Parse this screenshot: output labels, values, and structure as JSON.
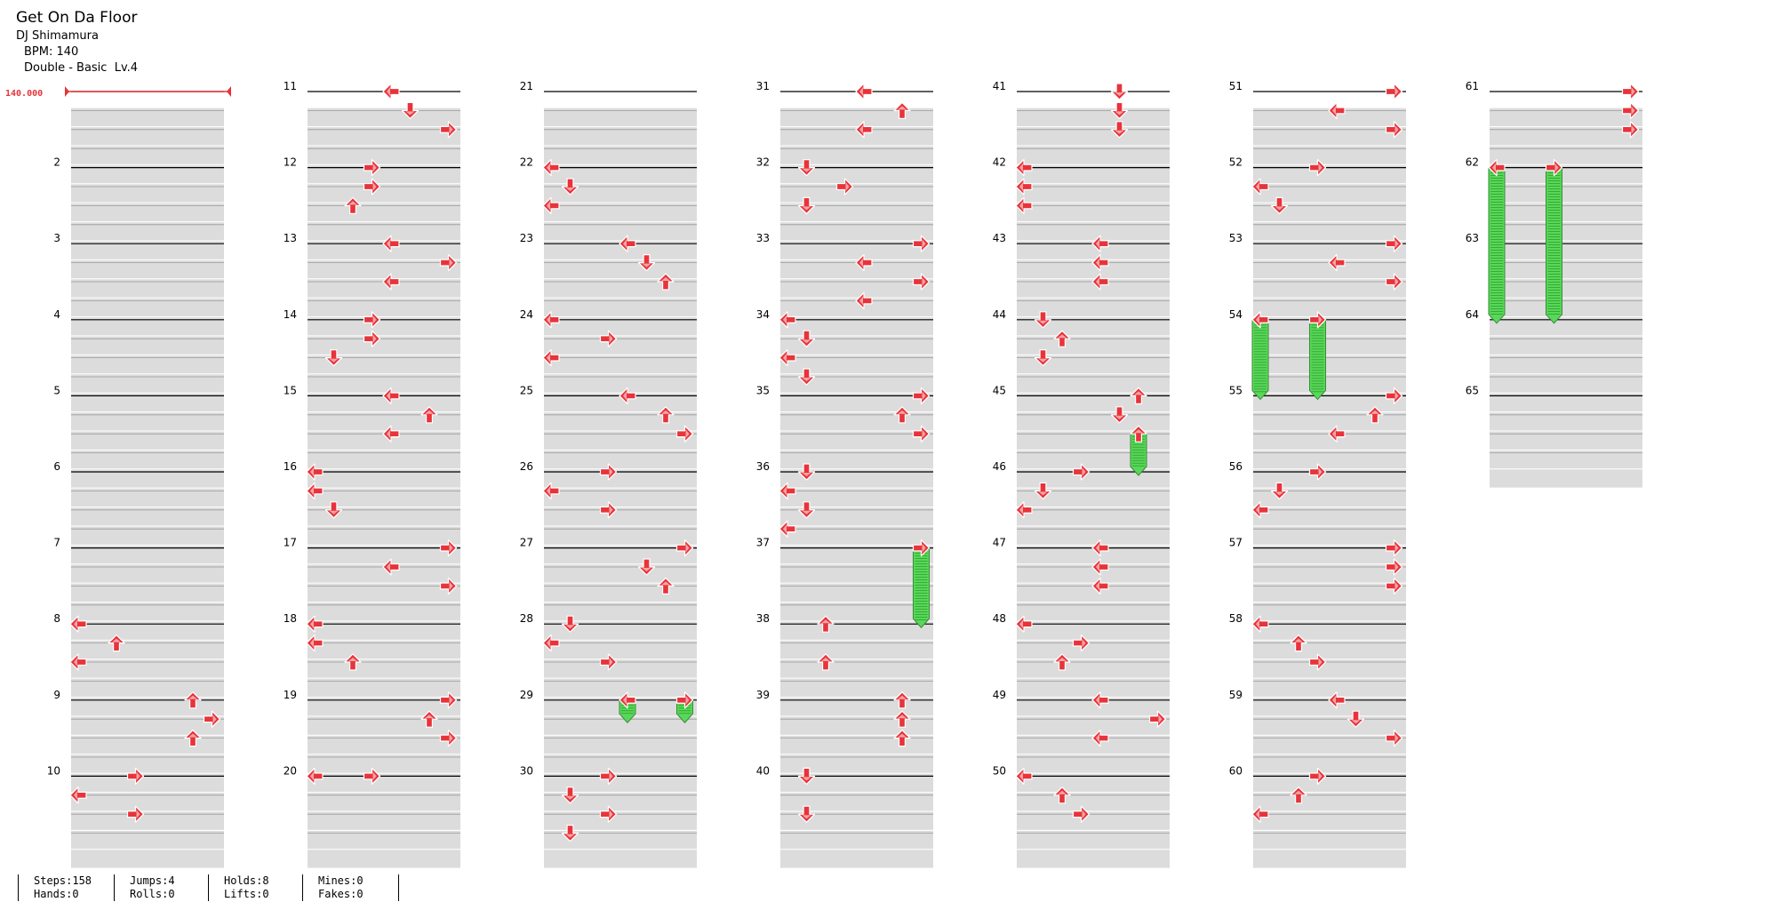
{
  "song": {
    "title": "Get On Da Floor",
    "artist": "DJ Shimamura",
    "bpm_label": "BPM: 140",
    "difficulty": "Double - Basic  Lv.4"
  },
  "bpm_marker": "140.000",
  "colors": {
    "arrow": "#e8333a",
    "hold": "#58d858",
    "row_shade": "#dcdcdc",
    "bpm": "#e8333a"
  },
  "measure_numbers": [
    "2",
    "3",
    "4",
    "5",
    "6",
    "7",
    "8",
    "9",
    "10",
    "11",
    "12",
    "13",
    "14",
    "15",
    "16",
    "17",
    "18",
    "19",
    "20",
    "21",
    "22",
    "23",
    "24",
    "25",
    "26",
    "27",
    "28",
    "29",
    "30",
    "31",
    "32",
    "33",
    "34",
    "35",
    "36",
    "37",
    "38",
    "39",
    "40",
    "41",
    "42",
    "43",
    "44",
    "45",
    "46",
    "47",
    "48",
    "49",
    "50",
    "51",
    "52",
    "53",
    "54",
    "55",
    "56",
    "57",
    "58",
    "59",
    "60",
    "61",
    "62",
    "63",
    "64",
    "65"
  ],
  "notes": [
    [
      8,
      0,
      "left"
    ],
    [
      8,
      2,
      "up"
    ],
    [
      8,
      4,
      "left"
    ],
    [
      9,
      0,
      "up"
    ],
    [
      9,
      2,
      "right"
    ],
    [
      9,
      4,
      "up"
    ],
    [
      10,
      0,
      "right"
    ],
    [
      10,
      2,
      "left"
    ],
    [
      10,
      4,
      "right"
    ],
    [
      11,
      0,
      "left"
    ],
    [
      11,
      2,
      "down"
    ],
    [
      11,
      4,
      "right"
    ],
    [
      12,
      0,
      "right"
    ],
    [
      12,
      2,
      "right"
    ],
    [
      12,
      4,
      "up"
    ],
    [
      13,
      0,
      "left"
    ],
    [
      13,
      2,
      "right"
    ],
    [
      13,
      4,
      "left"
    ],
    [
      14,
      0,
      "right"
    ],
    [
      14,
      2,
      "right"
    ],
    [
      14,
      4,
      "down"
    ],
    [
      15,
      0,
      "left"
    ],
    [
      15,
      2,
      "up"
    ],
    [
      15,
      4,
      "left"
    ],
    [
      16,
      0,
      "left"
    ],
    [
      16,
      2,
      "left"
    ],
    [
      16,
      4,
      "down"
    ],
    [
      17,
      0,
      "right"
    ],
    [
      17,
      2,
      "left"
    ],
    [
      17,
      4,
      "right"
    ],
    [
      18,
      0,
      "left"
    ],
    [
      18,
      2,
      "left"
    ],
    [
      18,
      4,
      "up"
    ],
    [
      19,
      0,
      "right"
    ],
    [
      19,
      2,
      "up"
    ],
    [
      19,
      4,
      "right"
    ],
    [
      20,
      0,
      "left"
    ],
    [
      20,
      0,
      "right"
    ],
    [
      22,
      0,
      "left"
    ],
    [
      22,
      2,
      "down"
    ],
    [
      22,
      4,
      "left"
    ],
    [
      23,
      0,
      "left"
    ],
    [
      23,
      2,
      "down"
    ],
    [
      23,
      4,
      "up"
    ],
    [
      24,
      0,
      "left"
    ],
    [
      24,
      2,
      "right"
    ],
    [
      24,
      4,
      "left"
    ],
    [
      25,
      0,
      "left"
    ],
    [
      25,
      2,
      "up"
    ],
    [
      25,
      4,
      "right"
    ],
    [
      26,
      0,
      "right"
    ],
    [
      26,
      2,
      "left"
    ],
    [
      26,
      4,
      "right"
    ],
    [
      27,
      0,
      "right"
    ],
    [
      27,
      2,
      "down"
    ],
    [
      27,
      4,
      "up"
    ],
    [
      28,
      0,
      "down"
    ],
    [
      28,
      2,
      "left"
    ],
    [
      28,
      4,
      "right"
    ],
    [
      29,
      0,
      "right"
    ],
    [
      29,
      0,
      "left"
    ],
    [
      30,
      0,
      "right"
    ],
    [
      30,
      2,
      "down"
    ],
    [
      30,
      4,
      "right"
    ],
    [
      30,
      6,
      "down"
    ],
    [
      31,
      0,
      "left"
    ],
    [
      31,
      2,
      "up"
    ],
    [
      31,
      4,
      "left"
    ],
    [
      32,
      0,
      "down"
    ],
    [
      32,
      2,
      "right"
    ],
    [
      32,
      4,
      "down"
    ],
    [
      33,
      0,
      "right"
    ],
    [
      33,
      2,
      "left"
    ],
    [
      33,
      4,
      "right"
    ],
    [
      33,
      6,
      "left"
    ],
    [
      34,
      0,
      "left"
    ],
    [
      34,
      2,
      "down"
    ],
    [
      34,
      4,
      "left"
    ],
    [
      34,
      6,
      "down"
    ],
    [
      35,
      0,
      "right"
    ],
    [
      35,
      2,
      "up"
    ],
    [
      35,
      4,
      "right"
    ],
    [
      36,
      0,
      "down"
    ],
    [
      36,
      2,
      "left"
    ],
    [
      36,
      4,
      "down"
    ],
    [
      36,
      6,
      "left"
    ],
    [
      37,
      0,
      "right"
    ],
    [
      38,
      0,
      "up"
    ],
    [
      38,
      4,
      "up"
    ],
    [
      39,
      0,
      "up"
    ],
    [
      39,
      2,
      "up"
    ],
    [
      39,
      4,
      "up"
    ],
    [
      40,
      0,
      "down"
    ],
    [
      40,
      4,
      "down"
    ],
    [
      41,
      0,
      "down"
    ],
    [
      41,
      2,
      "down"
    ],
    [
      41,
      4,
      "down"
    ],
    [
      42,
      0,
      "left"
    ],
    [
      42,
      2,
      "left"
    ],
    [
      42,
      4,
      "left"
    ],
    [
      43,
      0,
      "left"
    ],
    [
      43,
      2,
      "left"
    ],
    [
      43,
      4,
      "left"
    ],
    [
      44,
      0,
      "down"
    ],
    [
      44,
      2,
      "up"
    ],
    [
      44,
      4,
      "down"
    ],
    [
      45,
      0,
      "up"
    ],
    [
      45,
      2,
      "down"
    ],
    [
      45,
      4,
      "up"
    ],
    [
      46,
      0,
      "right"
    ],
    [
      46,
      2,
      "down"
    ],
    [
      46,
      4,
      "left"
    ],
    [
      47,
      0,
      "left"
    ],
    [
      47,
      2,
      "left"
    ],
    [
      47,
      4,
      "left"
    ],
    [
      48,
      0,
      "left"
    ],
    [
      48,
      2,
      "right"
    ],
    [
      48,
      4,
      "up"
    ],
    [
      49,
      0,
      "left"
    ],
    [
      49,
      2,
      "right"
    ],
    [
      49,
      4,
      "left"
    ],
    [
      50,
      0,
      "left"
    ],
    [
      50,
      2,
      "up"
    ],
    [
      50,
      4,
      "right"
    ],
    [
      51,
      0,
      "right"
    ],
    [
      51,
      2,
      "left"
    ],
    [
      51,
      4,
      "right"
    ],
    [
      52,
      0,
      "right"
    ],
    [
      52,
      2,
      "left"
    ],
    [
      52,
      4,
      "down"
    ],
    [
      53,
      0,
      "right"
    ],
    [
      53,
      2,
      "left"
    ],
    [
      53,
      4,
      "right"
    ],
    [
      54,
      0,
      "left"
    ],
    [
      54,
      0,
      "right"
    ],
    [
      55,
      0,
      "right"
    ],
    [
      55,
      2,
      "up"
    ],
    [
      55,
      4,
      "left"
    ],
    [
      56,
      0,
      "right"
    ],
    [
      56,
      2,
      "down"
    ],
    [
      56,
      4,
      "left"
    ],
    [
      57,
      0,
      "right"
    ],
    [
      57,
      2,
      "right"
    ],
    [
      57,
      4,
      "right"
    ],
    [
      58,
      0,
      "left"
    ],
    [
      58,
      2,
      "up"
    ],
    [
      58,
      4,
      "right"
    ],
    [
      59,
      0,
      "left"
    ],
    [
      59,
      2,
      "down"
    ],
    [
      59,
      4,
      "right"
    ],
    [
      60,
      0,
      "right"
    ],
    [
      60,
      2,
      "up"
    ],
    [
      60,
      4,
      "left"
    ],
    [
      61,
      0,
      "right"
    ],
    [
      61,
      2,
      "right"
    ],
    [
      61,
      4,
      "right"
    ],
    [
      62,
      0,
      "right"
    ],
    [
      62,
      0,
      "left"
    ]
  ],
  "holds": [
    [
      29,
      0,
      29,
      2,
      "right"
    ],
    [
      29,
      0,
      29,
      2,
      "left"
    ],
    [
      37,
      0,
      38,
      0,
      "right"
    ],
    [
      45,
      4,
      46,
      0,
      "up"
    ],
    [
      54,
      0,
      55,
      0,
      "left"
    ],
    [
      54,
      0,
      55,
      0,
      "right"
    ],
    [
      62,
      0,
      64,
      0,
      "right"
    ],
    [
      62,
      0,
      64,
      0,
      "left"
    ]
  ],
  "stats": {
    "steps": "Steps:158",
    "hands": "Hands:0",
    "jumps": "Jumps:4",
    "rolls": "Rolls:0",
    "holds": "Holds:8",
    "lifts": "Lifts:0",
    "mines": "Mines:0",
    "fakes": "Fakes:0"
  }
}
